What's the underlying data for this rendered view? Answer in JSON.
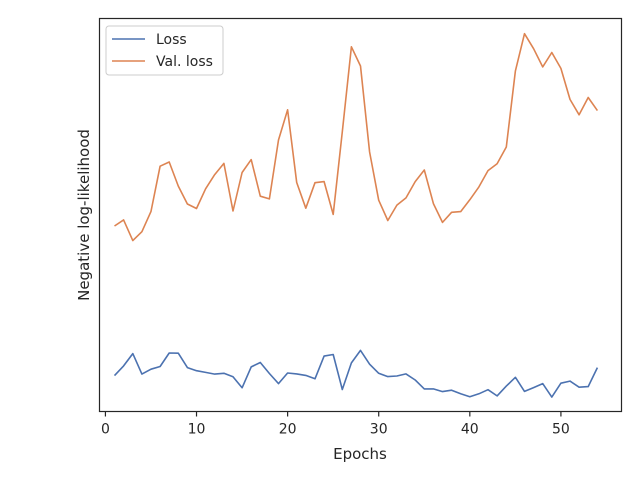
{
  "chart_data": {
    "type": "line",
    "title": "",
    "xlabel": "Epochs",
    "ylabel": "Negative log-likelihood",
    "xlim": [
      -0.65,
      56.65
    ],
    "ylim": [
      -0.08,
      1.78
    ],
    "xticks": [
      0,
      10,
      20,
      30,
      40,
      50
    ],
    "yticks_visible": false,
    "grid": false,
    "legend": "top-left",
    "colors": {
      "Loss": "#4c72b0",
      "Val. loss": "#dd8452"
    },
    "x": [
      1,
      2,
      3,
      4,
      5,
      6,
      7,
      8,
      9,
      10,
      11,
      12,
      13,
      14,
      15,
      16,
      17,
      18,
      19,
      20,
      21,
      22,
      23,
      24,
      25,
      26,
      27,
      28,
      29,
      30,
      31,
      32,
      33,
      34,
      35,
      36,
      37,
      38,
      39,
      40,
      41,
      42,
      43,
      44,
      45,
      46,
      47,
      48,
      49,
      50,
      51,
      52,
      53,
      54
    ],
    "series": [
      {
        "name": "Loss",
        "values": [
          0.09,
          0.136,
          0.194,
          0.097,
          0.12,
          0.133,
          0.197,
          0.196,
          0.128,
          0.113,
          0.105,
          0.097,
          0.101,
          0.084,
          0.032,
          0.131,
          0.152,
          0.1,
          0.052,
          0.102,
          0.098,
          0.091,
          0.075,
          0.182,
          0.19,
          0.024,
          0.15,
          0.209,
          0.144,
          0.101,
          0.085,
          0.088,
          0.098,
          0.069,
          0.027,
          0.027,
          0.014,
          0.021,
          0.004,
          -0.01,
          0.004,
          0.023,
          -0.006,
          0.04,
          0.082,
          0.015,
          0.033,
          0.052,
          -0.012,
          0.054,
          0.064,
          0.035,
          0.038,
          0.128
        ]
      },
      {
        "name": "Val. loss",
        "values": [
          0.798,
          0.827,
          0.729,
          0.771,
          0.867,
          1.081,
          1.101,
          0.987,
          0.902,
          0.881,
          0.974,
          1.041,
          1.094,
          0.869,
          1.051,
          1.112,
          0.939,
          0.926,
          1.205,
          1.348,
          1.004,
          0.882,
          1.003,
          1.008,
          0.853,
          1.244,
          1.646,
          1.555,
          1.148,
          0.92,
          0.824,
          0.897,
          0.931,
          1.008,
          1.063,
          0.904,
          0.815,
          0.863,
          0.866,
          0.922,
          0.983,
          1.06,
          1.093,
          1.172,
          1.532,
          1.708,
          1.637,
          1.551,
          1.619,
          1.544,
          1.397,
          1.324,
          1.406,
          1.344
        ]
      }
    ]
  }
}
